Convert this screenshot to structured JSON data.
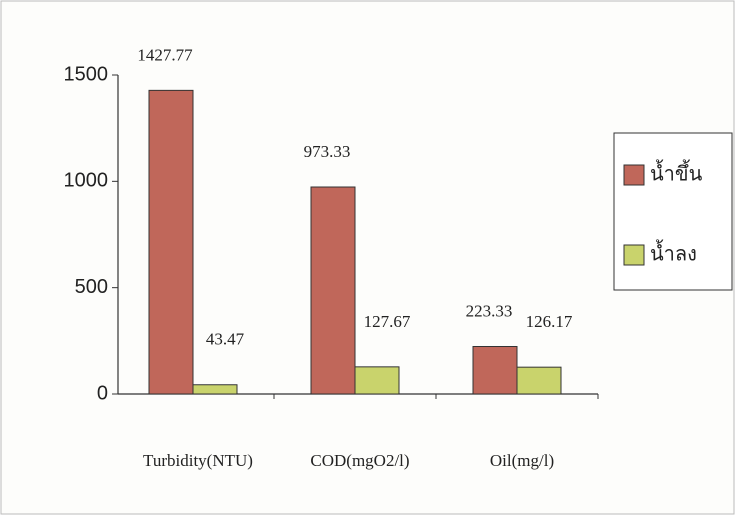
{
  "chart_data": {
    "type": "bar",
    "categories": [
      "Turbidity(NTU)",
      "COD(mgO2/l)",
      "Oil(mg/l)"
    ],
    "series": [
      {
        "name": "น้ำขึ้น",
        "color": "#c0675a",
        "values": [
          1427.77,
          973.33,
          223.33
        ]
      },
      {
        "name": "น้ำลง",
        "color": "#c9d36c",
        "values": [
          43.47,
          127.67,
          126.17
        ]
      }
    ],
    "ylim": [
      0,
      1500
    ],
    "yticks": [
      0,
      500,
      1000,
      1500
    ],
    "legend": "right"
  }
}
